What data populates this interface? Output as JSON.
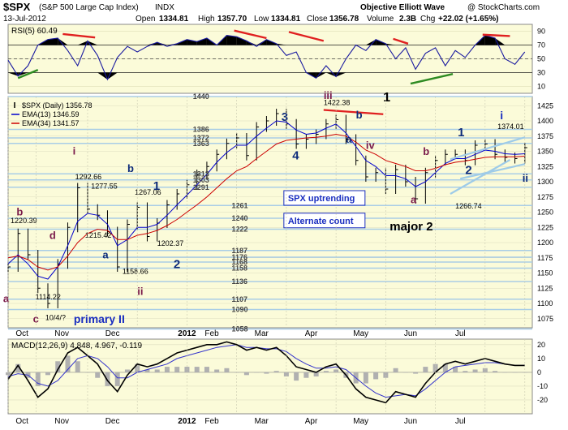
{
  "header": {
    "symbol": "$SPX",
    "name": "(S&P 500 Large Cap Index)",
    "exchange": "INDX",
    "brand": "Objective Elliott Wave",
    "watermark": "@ StockCharts.com",
    "date": "13-Jul-2012",
    "open_label": "Open",
    "open": "1334.81",
    "high_label": "High",
    "high": "1357.70",
    "low_label": "Low",
    "low": "1334.81",
    "close_label": "Close",
    "close": "1356.78",
    "volume_label": "Volume",
    "volume": "2.3B",
    "chg_label": "Chg",
    "chg": "+22.02 (+1.65%)"
  },
  "chart_data": [
    {
      "type": "line",
      "panel": "rsi",
      "legend": "RSI(5) 60.49",
      "ylim": [
        0,
        100
      ],
      "yticks": [
        "90",
        "70",
        "50",
        "30",
        "10"
      ],
      "levels": [
        70,
        50,
        30
      ],
      "months": [
        0,
        0.56,
        1.6,
        2.6,
        3.6,
        4.6,
        5.6,
        6.6,
        7.6,
        8.6,
        9.6,
        10.4
      ],
      "x": [
        0,
        0.2,
        0.4,
        0.6,
        0.8,
        1.0,
        1.2,
        1.4,
        1.6,
        1.8,
        2.0,
        2.2,
        2.4,
        2.6,
        2.8,
        3.0,
        3.2,
        3.4,
        3.6,
        3.8,
        4.0,
        4.2,
        4.4,
        4.6,
        4.8,
        5.0,
        5.2,
        5.4,
        5.6,
        5.8,
        6.0,
        6.2,
        6.4,
        6.6,
        6.8,
        7.0,
        7.2,
        7.4,
        7.6,
        7.8,
        8.0,
        8.2,
        8.4,
        8.6,
        8.8,
        9.0,
        9.2,
        9.4,
        9.6,
        9.8,
        10.0,
        10.2,
        10.4
      ],
      "y": [
        48,
        25,
        40,
        70,
        78,
        80,
        62,
        40,
        76,
        55,
        20,
        52,
        68,
        60,
        68,
        74,
        68,
        72,
        78,
        75,
        80,
        70,
        84,
        82,
        76,
        68,
        78,
        72,
        55,
        60,
        30,
        22,
        40,
        24,
        50,
        70,
        62,
        78,
        72,
        50,
        66,
        35,
        58,
        66,
        40,
        62,
        52,
        70,
        84,
        80,
        50,
        42,
        60
      ],
      "divergence_lines": [
        {
          "x": [
            0.2,
            0.6
          ],
          "y": [
            22,
            34
          ],
          "color": "#2e8b22"
        },
        {
          "x": [
            1.1,
            1.75
          ],
          "y": [
            86,
            81
          ],
          "color": "#e02020"
        },
        {
          "x": [
            4.55,
            5.2
          ],
          "y": [
            91,
            80
          ],
          "color": "#e02020"
        },
        {
          "x": [
            5.65,
            6.35
          ],
          "y": [
            89,
            76
          ],
          "color": "#e02020"
        },
        {
          "x": [
            7.75,
            8.05
          ],
          "y": [
            79,
            72
          ],
          "color": "#e02020"
        },
        {
          "x": [
            8.1,
            8.95
          ],
          "y": [
            14,
            28
          ],
          "color": "#2e8b22"
        },
        {
          "x": [
            9.55,
            10.1
          ],
          "y": [
            85,
            83
          ],
          "color": "#e02020"
        }
      ]
    },
    {
      "type": "line",
      "panel": "price",
      "ylim": [
        1060,
        1440
      ],
      "yticks": [
        1425,
        1400,
        1375,
        1350,
        1325,
        1300,
        1275,
        1250,
        1225,
        1200,
        1175,
        1150,
        1125,
        1100,
        1075
      ],
      "grid": "horizontal",
      "legend": [
        {
          "label": "$SPX (Daily) 1356.78",
          "color": "#000000"
        },
        {
          "label": "EMA(13) 1346.59",
          "color": "#0000cc"
        },
        {
          "label": "EMA(34) 1341.57",
          "color": "#cc0000"
        }
      ],
      "x": [
        0,
        0.2,
        0.4,
        0.6,
        0.8,
        1.0,
        1.2,
        1.4,
        1.6,
        1.8,
        2.0,
        2.2,
        2.4,
        2.6,
        2.8,
        3.0,
        3.2,
        3.4,
        3.6,
        3.8,
        4.0,
        4.2,
        4.4,
        4.6,
        4.8,
        5.0,
        5.2,
        5.4,
        5.6,
        5.8,
        6.0,
        6.2,
        6.4,
        6.6,
        6.8,
        7.0,
        7.2,
        7.4,
        7.6,
        7.8,
        8.0,
        8.2,
        8.4,
        8.6,
        8.8,
        9.0,
        9.2,
        9.4,
        9.6,
        9.8,
        10.0,
        10.2,
        10.4
      ],
      "series": [
        {
          "name": "$SPX (Daily)",
          "color": "#000000",
          "values": [
            1160,
            1215,
            1180,
            1125,
            1100,
            1165,
            1225,
            1290,
            1255,
            1245,
            1218,
            1160,
            1230,
            1258,
            1210,
            1232,
            1262,
            1280,
            1295,
            1312,
            1325,
            1345,
            1363,
            1372,
            1343,
            1390,
            1400,
            1412,
            1395,
            1362,
            1370,
            1378,
            1395,
            1402,
            1370,
            1335,
            1308,
            1315,
            1288,
            1320,
            1300,
            1272,
            1315,
            1335,
            1345,
            1345,
            1335,
            1360,
            1362,
            1345,
            1340,
            1338,
            1356
          ]
        },
        {
          "name": "EMA(13)",
          "color": "#0000cc",
          "values": [
            1165,
            1180,
            1165,
            1145,
            1140,
            1160,
            1195,
            1235,
            1248,
            1245,
            1230,
            1195,
            1205,
            1225,
            1225,
            1230,
            1245,
            1262,
            1278,
            1295,
            1312,
            1332,
            1348,
            1360,
            1360,
            1375,
            1388,
            1400,
            1398,
            1385,
            1378,
            1380,
            1388,
            1395,
            1380,
            1358,
            1335,
            1325,
            1310,
            1310,
            1305,
            1292,
            1300,
            1315,
            1330,
            1338,
            1338,
            1345,
            1352,
            1350,
            1346,
            1345,
            1346
          ]
        },
        {
          "name": "EMA(34)",
          "color": "#cc0000",
          "values": [
            1175,
            1178,
            1172,
            1160,
            1155,
            1160,
            1178,
            1200,
            1215,
            1222,
            1220,
            1205,
            1205,
            1212,
            1215,
            1220,
            1228,
            1238,
            1250,
            1262,
            1275,
            1290,
            1305,
            1318,
            1325,
            1338,
            1350,
            1362,
            1368,
            1370,
            1372,
            1373,
            1375,
            1378,
            1375,
            1365,
            1352,
            1345,
            1335,
            1330,
            1325,
            1318,
            1318,
            1322,
            1328,
            1332,
            1334,
            1337,
            1340,
            1341,
            1341,
            1341,
            1342
          ]
        }
      ],
      "ref_levels": [
        1440,
        1386,
        1372,
        1363,
        1313,
        1303,
        1291,
        1261,
        1240,
        1222,
        1187,
        1176,
        1168,
        1158,
        1136,
        1107,
        1090,
        1058
      ],
      "ref_labels": [
        {
          "text": "1440",
          "x": 3.72,
          "y": 1440
        },
        {
          "text": "1386",
          "x": 3.72,
          "y": 1386
        },
        {
          "text": "1372",
          "x": 3.72,
          "y": 1372
        },
        {
          "text": "1363",
          "x": 3.72,
          "y": 1363
        },
        {
          "text": "1313",
          "x": 3.72,
          "y": 1313
        },
        {
          "text": "1303",
          "x": 3.72,
          "y": 1303
        },
        {
          "text": "1291",
          "x": 3.72,
          "y": 1291
        },
        {
          "text": "1261",
          "x": 4.5,
          "y": 1261
        },
        {
          "text": "1240",
          "x": 4.5,
          "y": 1240
        },
        {
          "text": "1222",
          "x": 4.5,
          "y": 1222
        },
        {
          "text": "1187",
          "x": 4.5,
          "y": 1187
        },
        {
          "text": "1176",
          "x": 4.5,
          "y": 1176
        },
        {
          "text": "1168",
          "x": 4.5,
          "y": 1168
        },
        {
          "text": "1158",
          "x": 4.5,
          "y": 1158
        },
        {
          "text": "1136",
          "x": 4.5,
          "y": 1136
        },
        {
          "text": "1107",
          "x": 4.5,
          "y": 1107
        },
        {
          "text": "1090",
          "x": 4.5,
          "y": 1090
        },
        {
          "text": "1058",
          "x": 4.5,
          "y": 1058
        }
      ],
      "price_labels": [
        {
          "text": "1292.66",
          "x": 1.35,
          "y": 1304
        },
        {
          "text": "1277.55",
          "x": 1.67,
          "y": 1289
        },
        {
          "text": "1267.06",
          "x": 2.55,
          "y": 1279
        },
        {
          "text": "1220.39",
          "x": 0.05,
          "y": 1232
        },
        {
          "text": "1215.42",
          "x": 1.55,
          "y": 1208
        },
        {
          "text": "1202.37",
          "x": 3.0,
          "y": 1195
        },
        {
          "text": "1158.66",
          "x": 2.3,
          "y": 1149
        },
        {
          "text": "1114.22",
          "x": 0.55,
          "y": 1107
        },
        {
          "text": "10/4/?",
          "x": 0.75,
          "y": 1073
        },
        {
          "text": "1422.38",
          "x": 6.35,
          "y": 1426
        },
        {
          "text": "1374.01",
          "x": 9.85,
          "y": 1387
        },
        {
          "text": "1266.74",
          "x": 9.0,
          "y": 1256
        }
      ],
      "wave_labels": [
        {
          "text": "iii",
          "x": 6.35,
          "y": 1436,
          "color": "#7a1a4a",
          "size": 13
        },
        {
          "text": "1",
          "x": 7.55,
          "y": 1432,
          "color": "#000000",
          "size": 16
        },
        {
          "text": "3",
          "x": 5.5,
          "y": 1400,
          "color": "#0d2b7a",
          "size": 15
        },
        {
          "text": "b",
          "x": 7.0,
          "y": 1404,
          "color": "#0d2b7a",
          "size": 13
        },
        {
          "text": "a",
          "x": 6.8,
          "y": 1364,
          "color": "#0d2b7a",
          "size": 13
        },
        {
          "text": "iv",
          "x": 7.2,
          "y": 1354,
          "color": "#7a1a4a",
          "size": 13
        },
        {
          "text": "4",
          "x": 5.72,
          "y": 1337,
          "color": "#0d2b7a",
          "size": 15
        },
        {
          "text": "i",
          "x": 1.3,
          "y": 1345,
          "color": "#7a1a4a",
          "size": 13
        },
        {
          "text": "b",
          "x": 2.4,
          "y": 1316,
          "color": "#0d2b7a",
          "size": 13
        },
        {
          "text": "1",
          "x": 2.92,
          "y": 1287,
          "color": "#0d2b7a",
          "size": 15
        },
        {
          "text": "b",
          "x": 0.17,
          "y": 1245,
          "color": "#7a1a4a",
          "size": 13
        },
        {
          "text": "d",
          "x": 0.83,
          "y": 1206,
          "color": "#7a1a4a",
          "size": 13
        },
        {
          "text": "a",
          "x": 1.9,
          "y": 1174,
          "color": "#0d2b7a",
          "size": 13
        },
        {
          "text": "2",
          "x": 3.33,
          "y": 1158,
          "color": "#0d2b7a",
          "size": 15
        },
        {
          "text": "ii",
          "x": 2.6,
          "y": 1114,
          "color": "#7a1a4a",
          "size": 13
        },
        {
          "text": "a",
          "x": -0.1,
          "y": 1102,
          "color": "#7a1a4a",
          "size": 13
        },
        {
          "text": "c",
          "x": 0.5,
          "y": 1069,
          "color": "#7a1a4a",
          "size": 13
        },
        {
          "text": "primary II",
          "x": 1.32,
          "y": 1068,
          "color": "#1a2ec0",
          "size": 14
        },
        {
          "text": "b",
          "x": 8.35,
          "y": 1344,
          "color": "#7a1a4a",
          "size": 13
        },
        {
          "text": "a",
          "x": 8.1,
          "y": 1265,
          "color": "#7a1a4a",
          "size": 13
        },
        {
          "text": "major 2",
          "x": 7.68,
          "y": 1220,
          "color": "#000000",
          "size": 15
        },
        {
          "text": "1",
          "x": 9.05,
          "y": 1375,
          "color": "#0d2b7a",
          "size": 15
        },
        {
          "text": "2",
          "x": 9.2,
          "y": 1313,
          "color": "#0d2b7a",
          "size": 15
        },
        {
          "text": "i",
          "x": 9.9,
          "y": 1403,
          "color": "#1a2ec0",
          "size": 14
        },
        {
          "text": "ii",
          "x": 10.35,
          "y": 1300,
          "color": "#0d2b7a",
          "size": 13
        }
      ],
      "trend_lines": [
        {
          "x": [
            6.35,
            7.55
          ],
          "y": [
            1418,
            1411
          ],
          "color": "#e02020"
        },
        {
          "x": [
            8.9,
            10.4
          ],
          "y": [
            1337,
            1373
          ],
          "color": "#9ecbe8"
        },
        {
          "x": [
            9.1,
            10.4
          ],
          "y": [
            1305,
            1329
          ],
          "color": "#9ecbe8"
        },
        {
          "x": [
            8.9,
            10.1
          ],
          "y": [
            1280,
            1336
          ],
          "color": "#9ecbe8"
        }
      ],
      "boxes": [
        {
          "text": "SPX uptrending",
          "x": 5.55,
          "y": 1268
        },
        {
          "text": "Alternate count",
          "x": 5.55,
          "y": 1231
        }
      ]
    },
    {
      "type": "line",
      "panel": "macd",
      "legend": "MACD(12,26,9) 4.848, 4.967, -0.119",
      "ylim": [
        -30,
        24
      ],
      "yticks": [
        "20",
        "10",
        "0",
        "-10",
        "-20"
      ],
      "x": [
        0,
        0.2,
        0.4,
        0.6,
        0.8,
        1.0,
        1.2,
        1.4,
        1.6,
        1.8,
        2.0,
        2.2,
        2.4,
        2.6,
        2.8,
        3.0,
        3.2,
        3.4,
        3.6,
        3.8,
        4.0,
        4.2,
        4.4,
        4.6,
        4.8,
        5.0,
        5.2,
        5.4,
        5.6,
        5.8,
        6.0,
        6.2,
        6.4,
        6.6,
        6.8,
        7.0,
        7.2,
        7.4,
        7.6,
        7.8,
        8.0,
        8.2,
        8.4,
        8.6,
        8.8,
        9.0,
        9.2,
        9.4,
        9.6,
        9.8,
        10.0,
        10.2,
        10.4
      ],
      "series": [
        {
          "name": "MACD",
          "color": "#000000",
          "values": [
            -5,
            5,
            -6,
            -18,
            -12,
            2,
            14,
            18,
            12,
            6,
            -6,
            -14,
            -2,
            6,
            4,
            6,
            10,
            14,
            16,
            18,
            20,
            20,
            22,
            20,
            16,
            18,
            16,
            18,
            12,
            4,
            2,
            0,
            4,
            6,
            -2,
            -12,
            -18,
            -20,
            -22,
            -14,
            -16,
            -18,
            -8,
            0,
            6,
            8,
            6,
            8,
            10,
            8,
            6,
            5,
            5
          ]
        },
        {
          "name": "Signal",
          "color": "#3333cc",
          "values": [
            -3,
            -1,
            -2,
            -8,
            -10,
            -6,
            2,
            10,
            12,
            10,
            4,
            -4,
            -4,
            0,
            2,
            4,
            6,
            10,
            12,
            14,
            16,
            18,
            19,
            20,
            18,
            18,
            17,
            17,
            15,
            10,
            6,
            3,
            3,
            4,
            2,
            -4,
            -10,
            -15,
            -18,
            -17,
            -16,
            -17,
            -12,
            -6,
            0,
            4,
            5,
            6,
            7,
            7,
            6,
            5,
            5
          ]
        },
        {
          "name": "Histogram",
          "color": "#b0b0b0",
          "values": [
            -2,
            6,
            -4,
            -10,
            -2,
            8,
            12,
            8,
            0,
            -4,
            -10,
            -10,
            2,
            6,
            2,
            2,
            4,
            4,
            4,
            4,
            4,
            2,
            3,
            0,
            -2,
            0,
            -1,
            1,
            -3,
            -6,
            -4,
            -3,
            1,
            2,
            -4,
            -8,
            -8,
            -5,
            -4,
            3,
            0,
            -1,
            4,
            6,
            6,
            4,
            1,
            2,
            3,
            1,
            0,
            0,
            0
          ]
        }
      ]
    }
  ],
  "axis": {
    "month_labels": [
      "Oct",
      "Nov",
      "Dec",
      "2012",
      "Feb",
      "Mar",
      "Apr",
      "May",
      "Jun",
      "Jul"
    ]
  }
}
